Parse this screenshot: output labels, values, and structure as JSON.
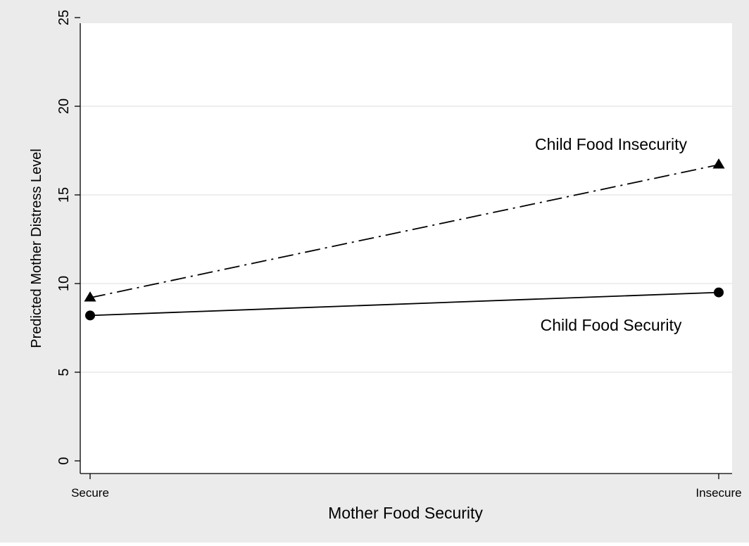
{
  "chart_data": {
    "type": "line",
    "title": "",
    "xlabel": "Mother Food Security",
    "ylabel": "Predicted Mother Distress Level",
    "categories": [
      "Secure",
      "Insecure"
    ],
    "ylim": [
      0,
      25
    ],
    "yticks": [
      "0",
      "5",
      "10",
      "15",
      "20",
      "25"
    ],
    "grid": true,
    "legend": "none",
    "series": [
      {
        "name": "Child Food Insecurity",
        "values": [
          9.2,
          16.7
        ],
        "marker": "triangle",
        "line_style": "dash-dot",
        "color": "#000000"
      },
      {
        "name": "Child Food Security",
        "values": [
          8.2,
          9.5
        ],
        "marker": "circle",
        "line_style": "solid",
        "color": "#000000"
      }
    ]
  },
  "colors": {
    "outer_background": "#ebebeb",
    "plot_background": "#ffffff",
    "gridline": "#e8e8e8",
    "ink": "#000000"
  }
}
